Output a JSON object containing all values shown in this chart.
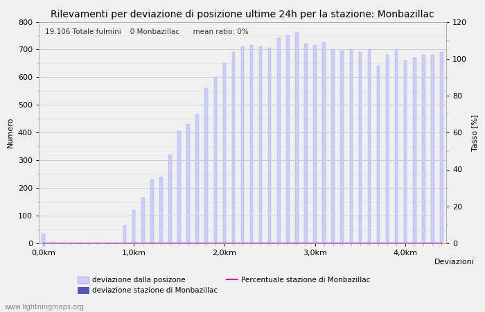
{
  "title": "Rilevamenti per deviazione di posizione ultime 24h per la stazione: Monbazillac",
  "subtitle": "19.106 Totale fulmini    0 Monbazillac      mean ratio: 0%",
  "xlabel": "Deviazioni",
  "ylabel_left": "Numero",
  "ylabel_right": "Tasso [%]",
  "watermark": "www.lightningmaps.org",
  "bar_values": [
    35,
    2,
    1,
    1,
    1,
    1,
    2,
    1,
    1,
    65,
    120,
    165,
    230,
    240,
    320,
    405,
    430,
    465,
    560,
    600,
    650,
    690,
    710,
    715,
    710,
    705,
    740,
    750,
    760,
    720,
    715,
    725,
    700,
    695,
    700,
    690,
    700,
    640,
    680,
    700,
    660,
    670,
    680,
    680,
    690
  ],
  "station_values": [
    0,
    0,
    0,
    0,
    0,
    0,
    0,
    0,
    0,
    0,
    0,
    0,
    0,
    0,
    0,
    0,
    0,
    0,
    0,
    0,
    0,
    0,
    0,
    0,
    0,
    0,
    0,
    0,
    0,
    0,
    0,
    0,
    0,
    0,
    0,
    0,
    0,
    0,
    0,
    0,
    0,
    0,
    0,
    0,
    0
  ],
  "bar_color": "#ccccff",
  "station_bar_color": "#5555bb",
  "line_color": "#cc00cc",
  "background_color": "#f0f0f0",
  "grid_color": "#cccccc",
  "minor_grid_color": "#dddddd",
  "ylim_left": [
    0,
    800
  ],
  "ylim_right": [
    0,
    120
  ],
  "xtick_positions": [
    0,
    10,
    20,
    30,
    40
  ],
  "xtick_labels": [
    "0,0km",
    "1,0km",
    "2,0km",
    "3,0km",
    "4,0km"
  ],
  "ytick_left": [
    0,
    100,
    200,
    300,
    400,
    500,
    600,
    700,
    800
  ],
  "ytick_right": [
    0,
    20,
    40,
    60,
    80,
    100,
    120
  ],
  "n_bars": 45,
  "title_fontsize": 10,
  "subtitle_fontsize": 7.5,
  "axis_fontsize": 8,
  "tick_fontsize": 8,
  "bar_width": 0.35
}
